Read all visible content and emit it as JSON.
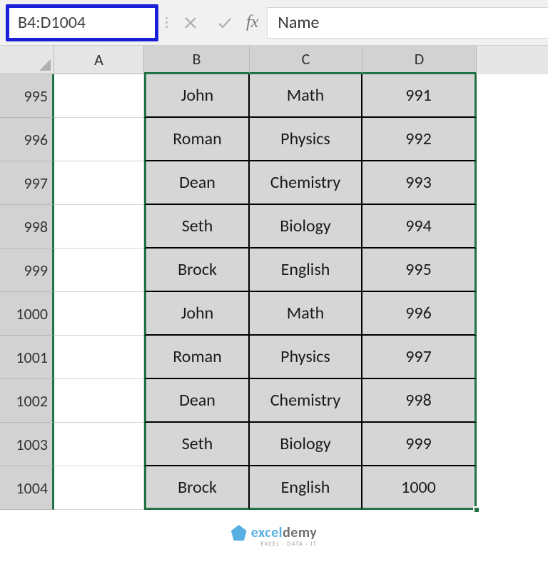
{
  "formula_bar": {
    "name_box_value": "B4:D1004",
    "formula_value": "Name",
    "fx_label": "fx",
    "name_box_highlight_color": "#1a20d8"
  },
  "columns": [
    {
      "letter": "A",
      "width_class": "wA",
      "selected": false
    },
    {
      "letter": "B",
      "width_class": "wB",
      "selected": true
    },
    {
      "letter": "C",
      "width_class": "wC",
      "selected": true
    },
    {
      "letter": "D",
      "width_class": "wD",
      "selected": true
    }
  ],
  "rows": [
    {
      "num": "995",
      "b": "John",
      "c": "Math",
      "d": "991"
    },
    {
      "num": "996",
      "b": "Roman",
      "c": "Physics",
      "d": "992"
    },
    {
      "num": "997",
      "b": "Dean",
      "c": "Chemistry",
      "d": "993"
    },
    {
      "num": "998",
      "b": "Seth",
      "c": "Biology",
      "d": "994"
    },
    {
      "num": "999",
      "b": "Brock",
      "c": "English",
      "d": "995"
    },
    {
      "num": "1000",
      "b": "John",
      "c": "Math",
      "d": "996"
    },
    {
      "num": "1001",
      "b": "Roman",
      "c": "Physics",
      "d": "997"
    },
    {
      "num": "1002",
      "b": "Dean",
      "c": "Chemistry",
      "d": "998"
    },
    {
      "num": "1003",
      "b": "Seth",
      "c": "Biology",
      "d": "999"
    },
    {
      "num": "1004",
      "b": "Brock",
      "c": "English",
      "d": "1000"
    }
  ],
  "selection": {
    "accent_color": "#217346",
    "fill_color": "#d6d6d6"
  },
  "watermark": {
    "brand1": "excel",
    "brand2": "demy",
    "sub": "EXCEL · DATA · IT"
  }
}
